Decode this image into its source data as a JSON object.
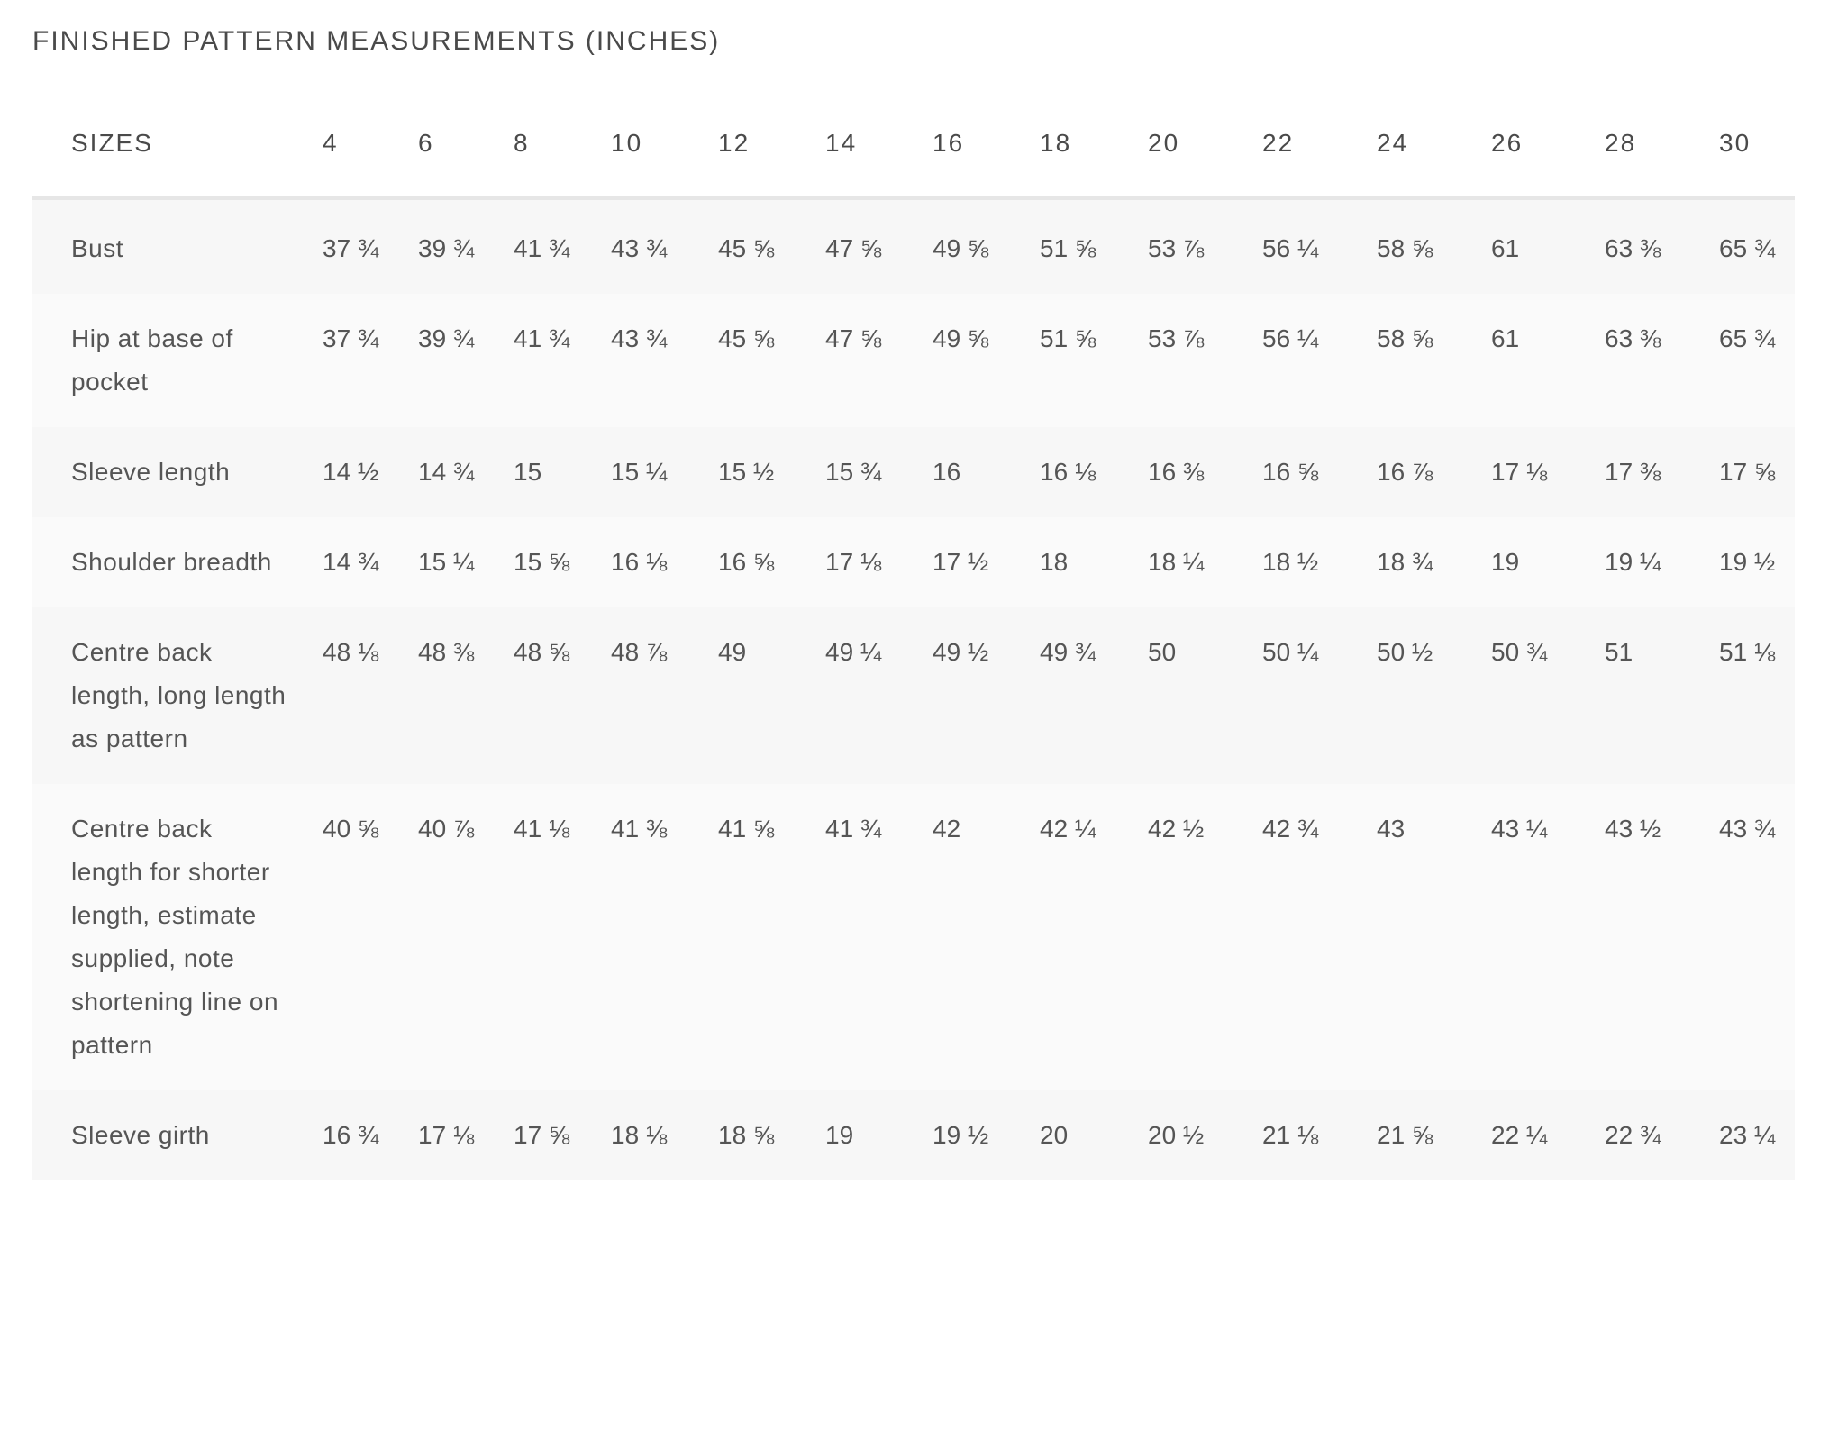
{
  "title": "FINISHED PATTERN MEASUREMENTS (INCHES)",
  "table": {
    "header_label": "SIZES",
    "sizes": [
      "4",
      "6",
      "8",
      "10",
      "12",
      "14",
      "16",
      "18",
      "20",
      "22",
      "24",
      "26",
      "28",
      "30"
    ],
    "rows": [
      {
        "label": "Bust",
        "values": [
          "37 ¾",
          "39 ¾",
          "41 ¾",
          "43 ¾",
          "45 ⅝",
          "47 ⅝",
          "49 ⅝",
          "51 ⅝",
          "53 ⅞",
          "56 ¼",
          "58 ⅝",
          "61",
          "63 ⅜",
          "65 ¾"
        ]
      },
      {
        "label": "Hip at base of pocket",
        "values": [
          "37 ¾",
          "39 ¾",
          "41 ¾",
          "43 ¾",
          "45 ⅝",
          "47 ⅝",
          "49 ⅝",
          "51 ⅝",
          "53 ⅞",
          "56 ¼",
          "58 ⅝",
          "61",
          "63 ⅜",
          "65 ¾"
        ]
      },
      {
        "label": "Sleeve length",
        "values": [
          "14 ½",
          "14 ¾",
          "15",
          "15 ¼",
          "15 ½",
          "15 ¾",
          "16",
          "16 ⅛",
          "16 ⅜",
          "16 ⅝",
          "16 ⅞",
          "17 ⅛",
          "17 ⅜",
          "17 ⅝"
        ]
      },
      {
        "label": "Shoulder breadth",
        "values": [
          "14 ¾",
          "15 ¼",
          "15 ⅝",
          "16 ⅛",
          "16 ⅝",
          "17 ⅛",
          "17 ½",
          "18",
          "18 ¼",
          "18 ½",
          "18 ¾",
          "19",
          "19 ¼",
          "19 ½"
        ]
      },
      {
        "label": "Centre back length, long length as pattern",
        "values": [
          "48 ⅛",
          "48 ⅜",
          "48 ⅝",
          "48 ⅞",
          "49",
          "49 ¼",
          "49 ½",
          "49 ¾",
          "50",
          "50 ¼",
          "50 ½",
          "50 ¾",
          "51",
          "51 ⅛"
        ]
      },
      {
        "label": "Centre back length for shorter length, estimate supplied, note shortening line on pattern",
        "values": [
          "40 ⅝",
          "40 ⅞",
          "41 ⅛",
          "41 ⅜",
          "41 ⅝",
          "41 ¾",
          "42",
          "42 ¼",
          "42 ½",
          "42 ¾",
          "43",
          "43 ¼",
          "43 ½",
          "43 ¾"
        ]
      },
      {
        "label": "Sleeve girth",
        "values": [
          "16 ¾",
          "17 ⅛",
          "17 ⅝",
          "18 ⅛",
          "18 ⅝",
          "19",
          "19 ½",
          "20",
          "20 ½",
          "21 ⅛",
          "21 ⅝",
          "22 ¼",
          "22 ¾",
          "23 ¼"
        ]
      }
    ]
  }
}
